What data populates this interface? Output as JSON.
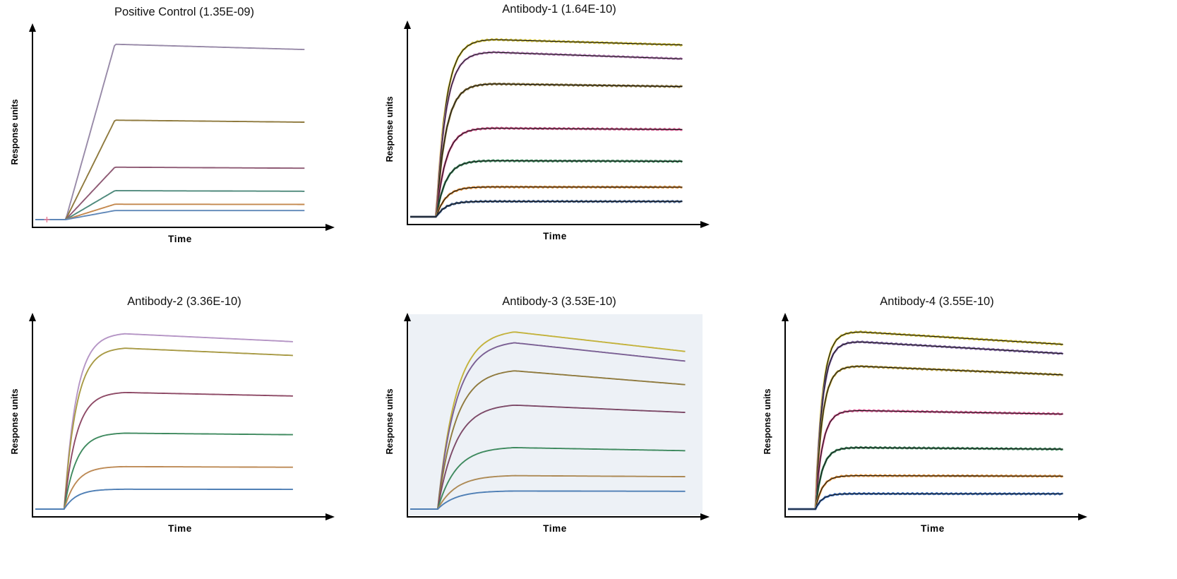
{
  "figure": {
    "background": "#ffffff"
  },
  "chart_data": [
    {
      "type": "line",
      "title": "Positive Control (1.35E-09)",
      "kd": "1.35E-09",
      "xlabel": "Time",
      "ylabel": "Response units",
      "legend": "none",
      "grid": false,
      "kinetics": "linear",
      "assoc_start": 0.105,
      "assoc_end": 0.275,
      "rise_k": 0,
      "trace_end": 0.93,
      "overlay_fit": false,
      "fit_color": "#141414",
      "panel_bg": "",
      "axis_color": "#000000",
      "artifact": {
        "symbol": "+",
        "color": "#e87d96",
        "x": 0.04
      },
      "series": [
        {
          "name": "trace-1",
          "color": "#988aa8",
          "plateau": 0.97,
          "decay": 0.03
        },
        {
          "name": "trace-2",
          "color": "#8f7a3e",
          "plateau": 0.55,
          "decay": 0.02
        },
        {
          "name": "trace-3",
          "color": "#8e5a74",
          "plateau": 0.29,
          "decay": 0.02
        },
        {
          "name": "trace-4",
          "color": "#4f8a7c",
          "plateau": 0.16,
          "decay": 0.02
        },
        {
          "name": "trace-5",
          "color": "#c4884e",
          "plateau": 0.085,
          "decay": 0.01
        },
        {
          "name": "trace-6",
          "color": "#5f87b8",
          "plateau": 0.05,
          "decay": 0.0
        }
      ]
    },
    {
      "type": "line",
      "title": "Antibody-1 (1.64E-10)",
      "kd": "1.64E-10",
      "xlabel": "Time",
      "ylabel": "Response units",
      "legend": "none",
      "grid": false,
      "kinetics": "exponential",
      "assoc_start": 0.09,
      "assoc_end": 0.29,
      "rise_k": 6,
      "trace_end": 0.94,
      "overlay_fit": true,
      "fit_color": "#141414",
      "panel_bg": "",
      "axis_color": "#000000",
      "series": [
        {
          "name": "trace-1",
          "color": "#d2c23c",
          "plateau": 0.98,
          "decay": 0.03
        },
        {
          "name": "trace-2",
          "color": "#c489c4",
          "plateau": 0.91,
          "decay": 0.04
        },
        {
          "name": "trace-3",
          "color": "#8f7a3e",
          "plateau": 0.735,
          "decay": 0.02
        },
        {
          "name": "trace-4",
          "color": "#d0568c",
          "plateau": 0.49,
          "decay": 0.015
        },
        {
          "name": "trace-5",
          "color": "#3f8a5f",
          "plateau": 0.31,
          "decay": 0.01
        },
        {
          "name": "trace-6",
          "color": "#dc8f3a",
          "plateau": 0.165,
          "decay": 0.008
        },
        {
          "name": "trace-7",
          "color": "#3c5a86",
          "plateau": 0.085,
          "decay": 0.005
        }
      ]
    },
    {
      "type": "line",
      "title": "Antibody-2 (3.36E-10)",
      "kd": "3.36E-10",
      "xlabel": "Time",
      "ylabel": "Response units",
      "legend": "none",
      "grid": false,
      "kinetics": "exponential",
      "assoc_start": 0.1,
      "assoc_end": 0.31,
      "rise_k": 5,
      "trace_end": 0.89,
      "overlay_fit": false,
      "fit_color": "#141414",
      "panel_bg": "",
      "axis_color": "#000000",
      "series": [
        {
          "name": "trace-1",
          "color": "#b595c5",
          "plateau": 0.97,
          "decay": 0.045
        },
        {
          "name": "trace-2",
          "color": "#a89a45",
          "plateau": 0.89,
          "decay": 0.045
        },
        {
          "name": "trace-3",
          "color": "#8e4a66",
          "plateau": 0.645,
          "decay": 0.03
        },
        {
          "name": "trace-4",
          "color": "#3f8a5f",
          "plateau": 0.42,
          "decay": 0.02
        },
        {
          "name": "trace-5",
          "color": "#bd8a55",
          "plateau": 0.235,
          "decay": 0.015
        },
        {
          "name": "trace-6",
          "color": "#4f7fb5",
          "plateau": 0.11,
          "decay": 0.008
        }
      ]
    },
    {
      "type": "line",
      "title": "Antibody-3 (3.53E-10)",
      "kd": "3.53E-10",
      "xlabel": "Time",
      "ylabel": "Response units",
      "legend": "none",
      "grid": false,
      "kinetics": "exponential",
      "assoc_start": 0.095,
      "assoc_end": 0.36,
      "rise_k": 4.2,
      "trace_end": 0.95,
      "overlay_fit": false,
      "fit_color": "#141414",
      "panel_bg": "#edf1f6",
      "axis_color": "#000000",
      "series": [
        {
          "name": "trace-1",
          "color": "#c3b23c",
          "plateau": 0.98,
          "decay": 0.11
        },
        {
          "name": "trace-2",
          "color": "#7a5f93",
          "plateau": 0.92,
          "decay": 0.11
        },
        {
          "name": "trace-3",
          "color": "#8f7a3e",
          "plateau": 0.765,
          "decay": 0.1
        },
        {
          "name": "trace-4",
          "color": "#7d4a68",
          "plateau": 0.575,
          "decay": 0.07
        },
        {
          "name": "trace-5",
          "color": "#3f8a5f",
          "plateau": 0.34,
          "decay": 0.05
        },
        {
          "name": "trace-6",
          "color": "#ad8a55",
          "plateau": 0.185,
          "decay": 0.03
        },
        {
          "name": "trace-7",
          "color": "#4f7fb5",
          "plateau": 0.1,
          "decay": 0.015
        }
      ]
    },
    {
      "type": "line",
      "title": "Antibody-4 (3.55E-10)",
      "kd": "3.55E-10",
      "xlabel": "Time",
      "ylabel": "Response units",
      "legend": "none",
      "grid": false,
      "kinetics": "exponential",
      "assoc_start": 0.095,
      "assoc_end": 0.25,
      "rise_k": 6.5,
      "trace_end": 0.95,
      "overlay_fit": true,
      "fit_color": "#141414",
      "panel_bg": "",
      "axis_color": "#000000",
      "series": [
        {
          "name": "trace-1",
          "color": "#d2c23c",
          "plateau": 0.98,
          "decay": 0.07
        },
        {
          "name": "trace-2",
          "color": "#8d6fb0",
          "plateau": 0.925,
          "decay": 0.07
        },
        {
          "name": "trace-3",
          "color": "#b89f3c",
          "plateau": 0.79,
          "decay": 0.06
        },
        {
          "name": "trace-4",
          "color": "#e0609a",
          "plateau": 0.545,
          "decay": 0.035
        },
        {
          "name": "trace-5",
          "color": "#3f8a5f",
          "plateau": 0.34,
          "decay": 0.025
        },
        {
          "name": "trace-6",
          "color": "#e0923a",
          "plateau": 0.185,
          "decay": 0.015
        },
        {
          "name": "trace-7",
          "color": "#3a6fc0",
          "plateau": 0.085,
          "decay": 0.008
        }
      ]
    }
  ]
}
